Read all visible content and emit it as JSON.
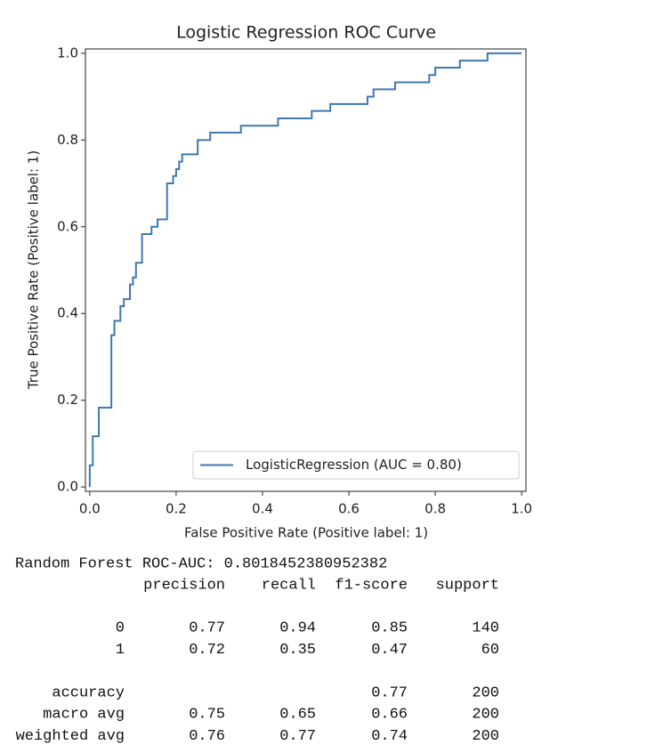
{
  "chart_data": {
    "type": "line",
    "title": "Logistic Regression ROC Curve",
    "xlabel": "False Positive Rate (Positive label: 1)",
    "ylabel": "True Positive Rate (Positive label: 1)",
    "x": [
      0,
      0,
      0.007,
      0.007,
      0.021,
      0.021,
      0.05,
      0.05,
      0.057,
      0.057,
      0.071,
      0.071,
      0.079,
      0.079,
      0.093,
      0.093,
      0.1,
      0.1,
      0.107,
      0.107,
      0.121,
      0.121,
      0.143,
      0.143,
      0.157,
      0.157,
      0.179,
      0.179,
      0.193,
      0.193,
      0.2,
      0.2,
      0.207,
      0.207,
      0.214,
      0.214,
      0.25,
      0.25,
      0.279,
      0.279,
      0.35,
      0.35,
      0.436,
      0.436,
      0.514,
      0.514,
      0.557,
      0.557,
      0.643,
      0.643,
      0.657,
      0.657,
      0.707,
      0.707,
      0.786,
      0.786,
      0.8,
      0.8,
      0.857,
      0.857,
      0.921,
      0.921,
      1
    ],
    "series": [
      {
        "name": "LogisticRegression (AUC = 0.80)",
        "color": "#3f78b0",
        "values": [
          0,
          0.05,
          0.05,
          0.117,
          0.117,
          0.183,
          0.183,
          0.35,
          0.35,
          0.383,
          0.383,
          0.417,
          0.417,
          0.433,
          0.433,
          0.467,
          0.467,
          0.483,
          0.483,
          0.517,
          0.517,
          0.583,
          0.583,
          0.6,
          0.6,
          0.617,
          0.617,
          0.7,
          0.7,
          0.717,
          0.717,
          0.733,
          0.733,
          0.75,
          0.75,
          0.767,
          0.767,
          0.8,
          0.8,
          0.817,
          0.817,
          0.833,
          0.833,
          0.85,
          0.85,
          0.867,
          0.867,
          0.883,
          0.883,
          0.9,
          0.9,
          0.917,
          0.917,
          0.933,
          0.933,
          0.95,
          0.95,
          0.967,
          0.967,
          0.983,
          0.983,
          1,
          1
        ]
      }
    ],
    "xlim": [
      -0.01,
      1.01
    ],
    "ylim": [
      -0.01,
      1.01
    ],
    "xticks": [
      {
        "value": 0,
        "label": "0.0"
      },
      0.2,
      0.4,
      0.6,
      0.8,
      {
        "value": 1,
        "label": "1.0"
      }
    ],
    "yticks": [
      {
        "value": 0,
        "label": "0.0"
      },
      0.2,
      0.4,
      0.6,
      0.8,
      {
        "value": 1,
        "label": "1.0"
      }
    ],
    "grid": false,
    "legend": "lower right"
  },
  "report": {
    "title": "Random Forest ROC-AUC: 0.8018452380952382",
    "columns": [
      "precision",
      "recall",
      "f1-score",
      "support"
    ],
    "groups": [
      [
        {
          "label": "0",
          "cells": [
            "0.77",
            "0.94",
            "0.85",
            "140"
          ]
        },
        {
          "label": "1",
          "cells": [
            "0.72",
            "0.35",
            "0.47",
            "60"
          ]
        }
      ],
      [
        {
          "label": "accuracy",
          "cells": [
            null,
            null,
            "0.77",
            "200"
          ]
        },
        {
          "label": "macro avg",
          "cells": [
            "0.75",
            "0.65",
            "0.66",
            "200"
          ]
        },
        {
          "label": "weighted avg",
          "cells": [
            "0.76",
            "0.77",
            "0.74",
            "200"
          ]
        }
      ]
    ]
  }
}
